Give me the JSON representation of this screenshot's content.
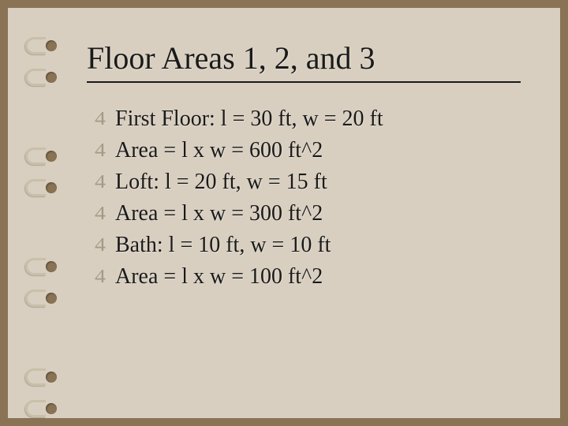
{
  "background_color": "#8a7355",
  "slide_color": "#d8cfc0",
  "title_color": "#1a1a1a",
  "text_color": "#1a1a1a",
  "bullet_color": "rgba(120,100,75,0.5)",
  "title_fontsize": 40,
  "text_fontsize": 28,
  "title": "Floor Areas 1, 2, and 3",
  "bullet_glyph": "4",
  "items": [
    "First Floor: l = 30 ft, w = 20 ft",
    "Area = l x w = 600 ft^2",
    "Loft: l = 20 ft, w = 15 ft",
    "Area = l x w = 300 ft^2",
    "Bath: l = 10 ft, w = 10 ft",
    "Area = l x w = 100 ft^2"
  ],
  "ring_positions": [
    34,
    74,
    174,
    214,
    314,
    354,
    454,
    494
  ]
}
